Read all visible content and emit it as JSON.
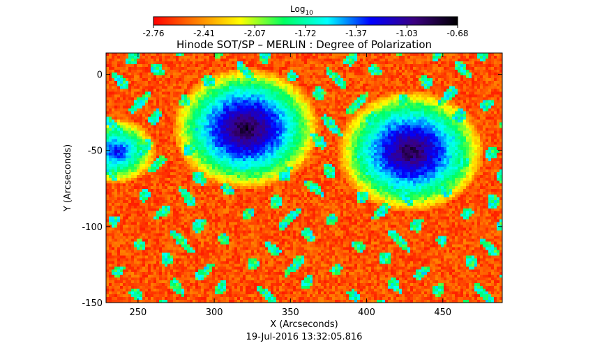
{
  "chart_data": {
    "type": "heatmap",
    "title": "Hinode SOT/SP – MERLIN : Degree of Polarization",
    "xlabel": "X (Arcseconds)",
    "ylabel": "Y (Arcseconds)",
    "timestamp": "19-Jul-2016 13:32:05.816",
    "xlim": [
      229,
      489
    ],
    "ylim": [
      -150,
      14
    ],
    "x_ticks": [
      250,
      300,
      350,
      400,
      450
    ],
    "y_ticks": [
      0,
      -50,
      -100,
      -150
    ],
    "colorbar": {
      "title_base": "Log",
      "title_sub": "10",
      "range": [
        -2.76,
        -0.68
      ],
      "ticks": [
        "-2.76",
        "-2.41",
        "-2.07",
        "-1.72",
        "-1.37",
        "-1.03",
        "-0.68"
      ],
      "colormap": [
        "#ff0000",
        "#ff8000",
        "#ffff00",
        "#00ff60",
        "#00ffff",
        "#0000ff",
        "#3b0080",
        "#000000"
      ]
    },
    "features": [
      {
        "name": "left sunspot",
        "x": 320,
        "y": -35,
        "log10_value_min": -0.75
      },
      {
        "name": "right sunspot",
        "x": 428,
        "y": -50,
        "log10_value_min": -0.8
      },
      {
        "name": "left edge plage",
        "x": 235,
        "y": -50,
        "log10_value_min": -1.2
      }
    ]
  }
}
